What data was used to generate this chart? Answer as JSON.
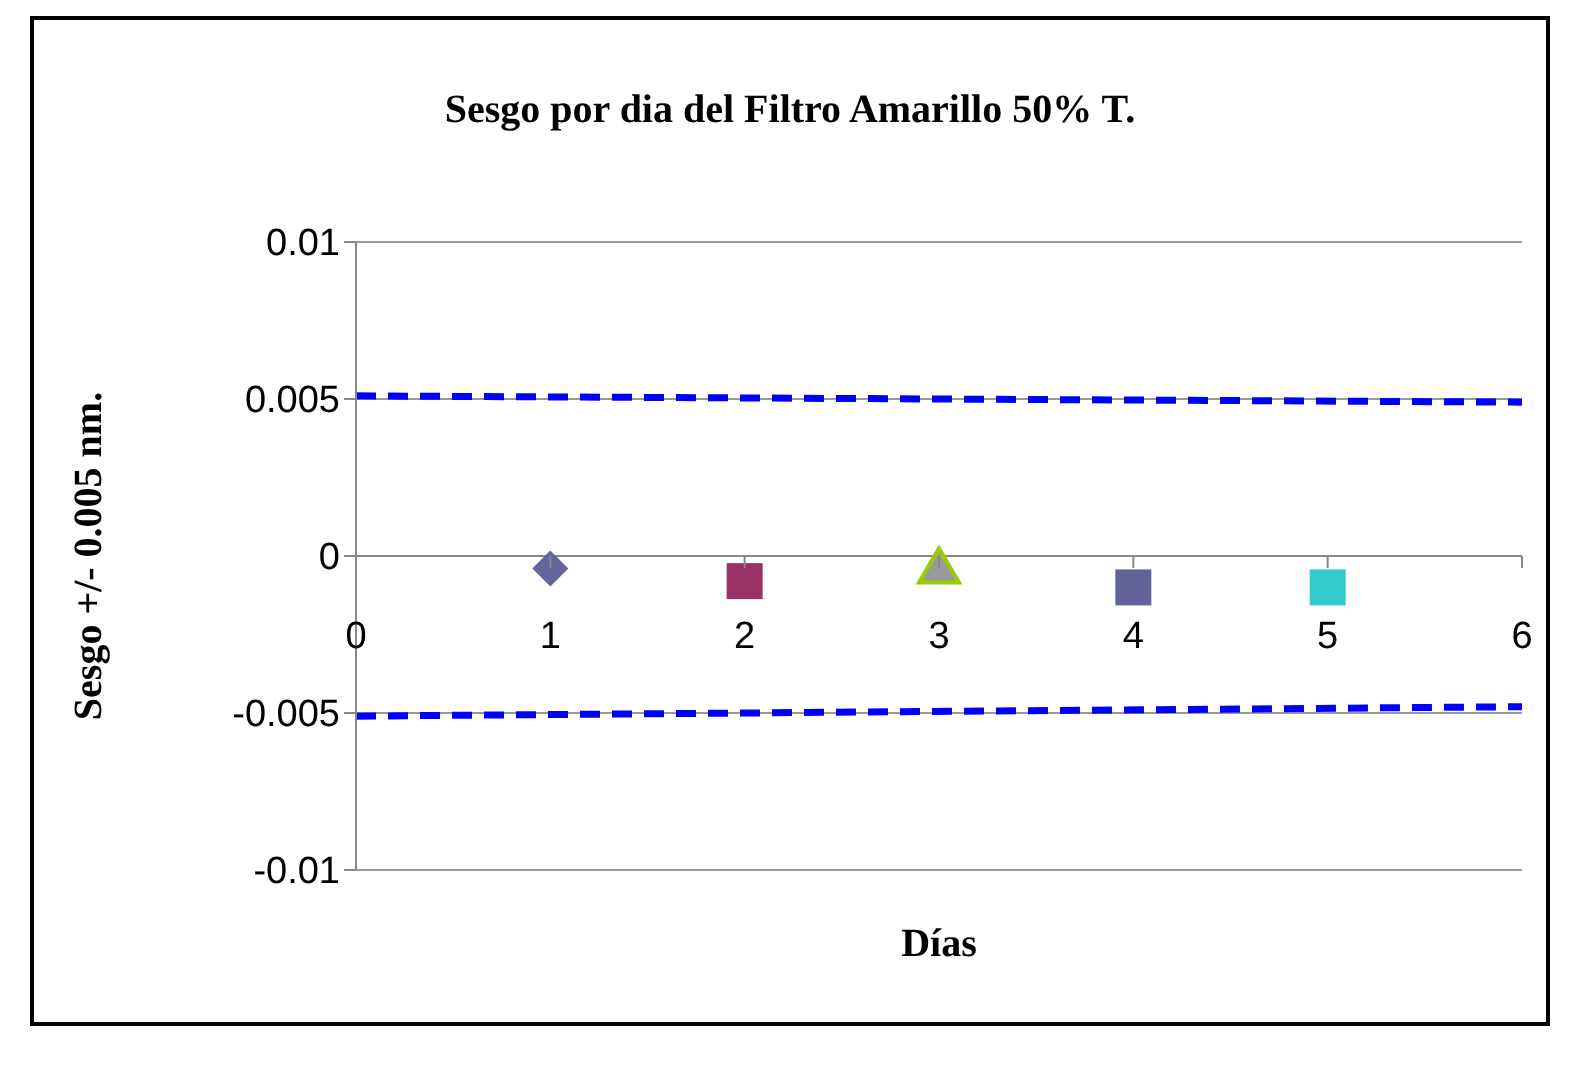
{
  "chart_data": {
    "type": "scatter",
    "title": "Sesgo por dia del Filtro Amarillo 50% T.",
    "xlabel": "Días",
    "ylabel": "Sesgo +/- 0.005 nm.",
    "xlim": [
      0,
      6
    ],
    "xticks": [
      0,
      1,
      2,
      3,
      4,
      5,
      6
    ],
    "ylim": [
      -0.01,
      0.01
    ],
    "yticks": [
      -0.01,
      -0.005,
      0,
      0.005,
      0.01
    ],
    "grid": "y",
    "series": [
      {
        "type": "line",
        "x": [
          0,
          6
        ],
        "values": [
          0.0051,
          0.0049
        ],
        "color": "#0000ff",
        "line_style": "dashed",
        "marker": "none"
      },
      {
        "type": "line",
        "x": [
          0,
          6
        ],
        "values": [
          -0.0051,
          -0.0048
        ],
        "color": "#0000ff",
        "line_style": "dashed",
        "marker": "none"
      },
      {
        "x": [
          1
        ],
        "values": [
          -0.0004
        ],
        "color": "#65659b",
        "marker": "diamond"
      },
      {
        "x": [
          2
        ],
        "values": [
          -0.0008
        ],
        "color": "#993366",
        "marker": "square"
      },
      {
        "x": [
          3
        ],
        "values": [
          -0.0004
        ],
        "color": "#999999",
        "marker": "triangle"
      },
      {
        "x": [
          4
        ],
        "values": [
          -0.001
        ],
        "color": "#62629a",
        "marker": "square"
      },
      {
        "x": [
          5
        ],
        "values": [
          -0.001
        ],
        "color": "#33cccc",
        "marker": "square"
      }
    ]
  }
}
